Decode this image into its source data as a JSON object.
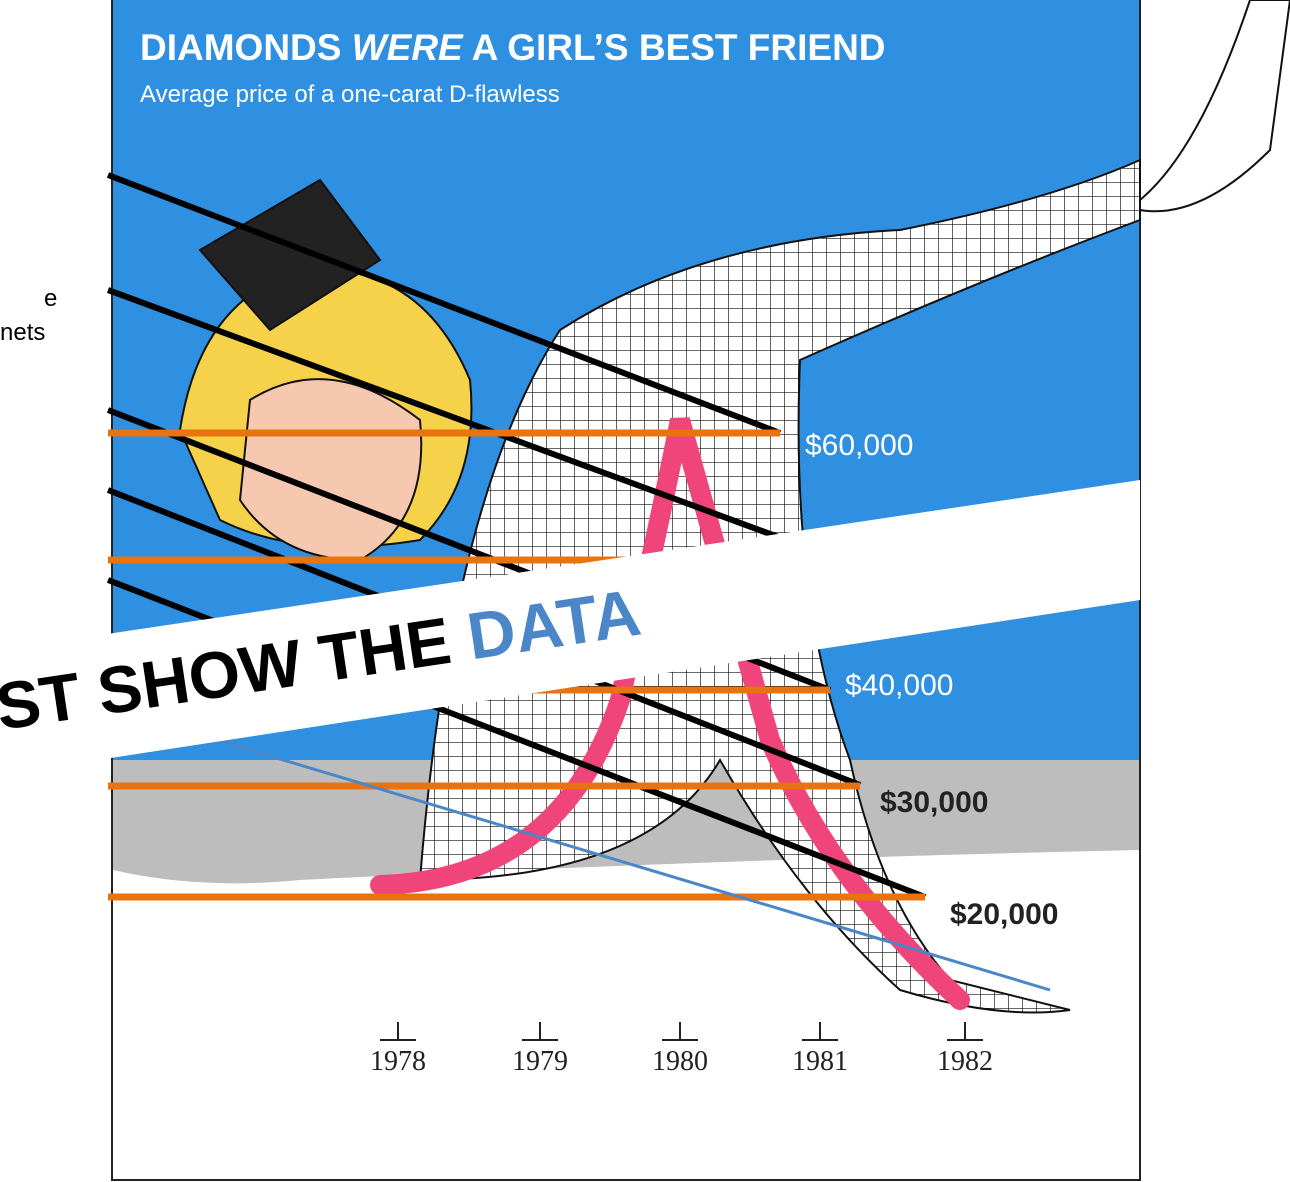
{
  "header": {
    "title_part1": "DIAMONDS ",
    "title_emphasis": "WERE",
    "title_part2": " A GIRL’S BEST FRIEND",
    "subtitle": "Average price of a one-carat D-flawless"
  },
  "price_labels": [
    "$60,000",
    "$40,000",
    "$30,000",
    "$20,000"
  ],
  "year_labels": [
    "1978",
    "1979",
    "1980",
    "1981",
    "1982"
  ],
  "banner": {
    "text": "ST SHOW THE ",
    "highlight": "DATA"
  },
  "side_text": [
    "e",
    "nets"
  ]
}
